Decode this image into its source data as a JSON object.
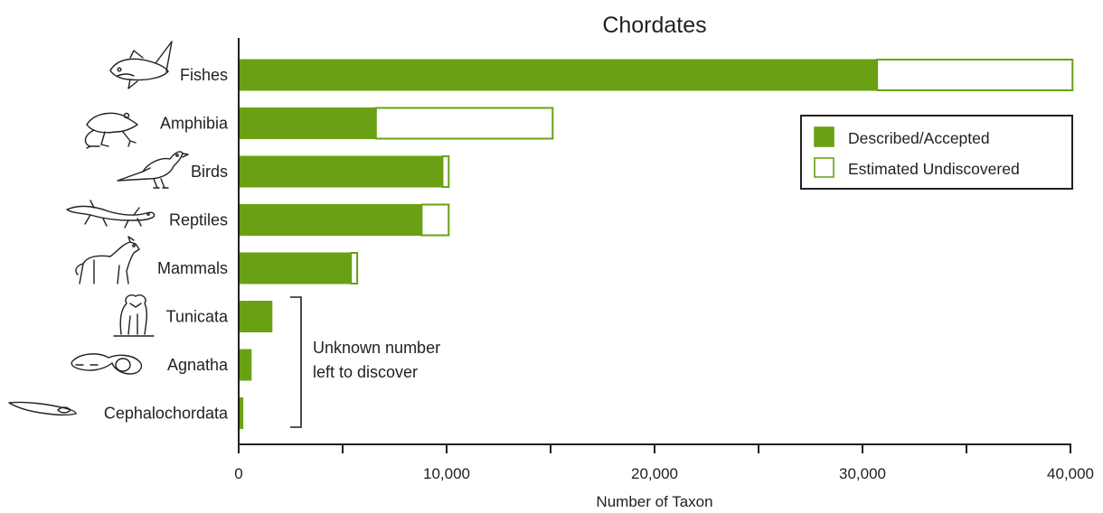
{
  "chart_data": {
    "type": "bar",
    "orientation": "horizontal",
    "stacked": true,
    "title": "Chordates",
    "xlabel": "Number of Taxon",
    "ylabel": "",
    "xlim": [
      0,
      40000
    ],
    "x_ticks": [
      0,
      10000,
      20000,
      30000,
      40000
    ],
    "x_tick_labels": [
      "0",
      "10,000",
      "20,000",
      "30,000",
      "40,000"
    ],
    "x_minor_ticks": [
      5000,
      15000,
      25000,
      35000
    ],
    "categories": [
      "Fishes",
      "Amphibia",
      "Birds",
      "Reptiles",
      "Mammals",
      "Tunicata",
      "Agnatha",
      "Cephalochordata"
    ],
    "series": [
      {
        "name": "Described/Accepted",
        "values": [
          30700,
          6600,
          9800,
          8800,
          5400,
          1600,
          600,
          200
        ]
      },
      {
        "name": "Estimated Undiscovered",
        "values": [
          9400,
          8500,
          300,
          1300,
          300,
          null,
          null,
          null
        ]
      }
    ],
    "legend_position": "right",
    "grid": false,
    "colors": {
      "described": "#6aa114",
      "undiscovered": "#ffffff",
      "outline": "#6aa114",
      "text": "#231f20"
    },
    "annotation": {
      "lines": [
        "Unknown number",
        "left to discover"
      ],
      "applies_to": [
        "Tunicata",
        "Agnatha",
        "Cephalochordata"
      ]
    },
    "icons": [
      "fish-icon",
      "frog-icon",
      "bird-icon",
      "salamander-icon",
      "wolf-icon",
      "tunicate-icon",
      "lamprey-icon",
      "lancelet-icon"
    ]
  }
}
